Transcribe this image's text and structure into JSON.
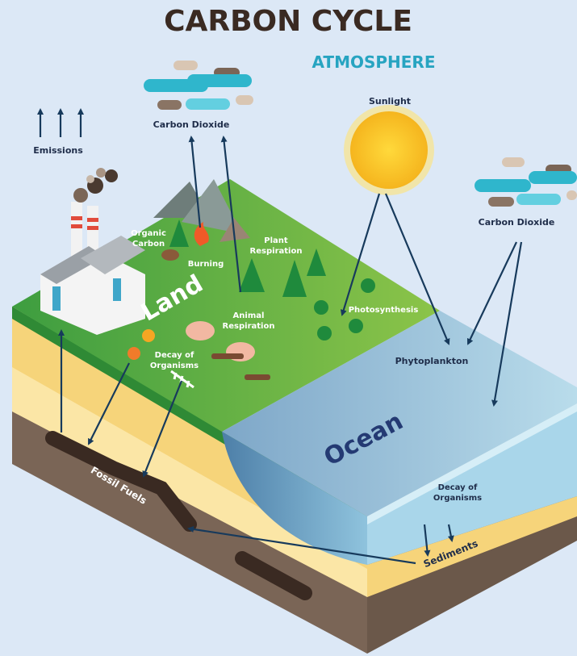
{
  "title": "CARBON CYCLE",
  "labels": {
    "atmosphere": "ATMOSPHERE",
    "co2_left": "Carbon Dioxide",
    "co2_right": "Carbon Dioxide",
    "sunlight": "Sunlight",
    "emissions": "Emissions",
    "organic_carbon": [
      "Organic",
      "Carbon"
    ],
    "burning": "Burning",
    "plant_respiration": [
      "Plant",
      "Respiration"
    ],
    "land": "Land",
    "animal_respiration": [
      "Animal",
      "Respiration"
    ],
    "photosynthesis": "Photosynthesis",
    "decay_land": [
      "Decay of",
      "Organisms"
    ],
    "phytoplankton": "Phytoplankton",
    "ocean": "Ocean",
    "fossil_fuels": "Fossil Fuels",
    "decay_ocean": [
      "Decay of",
      "Organisms"
    ],
    "sediments": "Sediments"
  }
}
